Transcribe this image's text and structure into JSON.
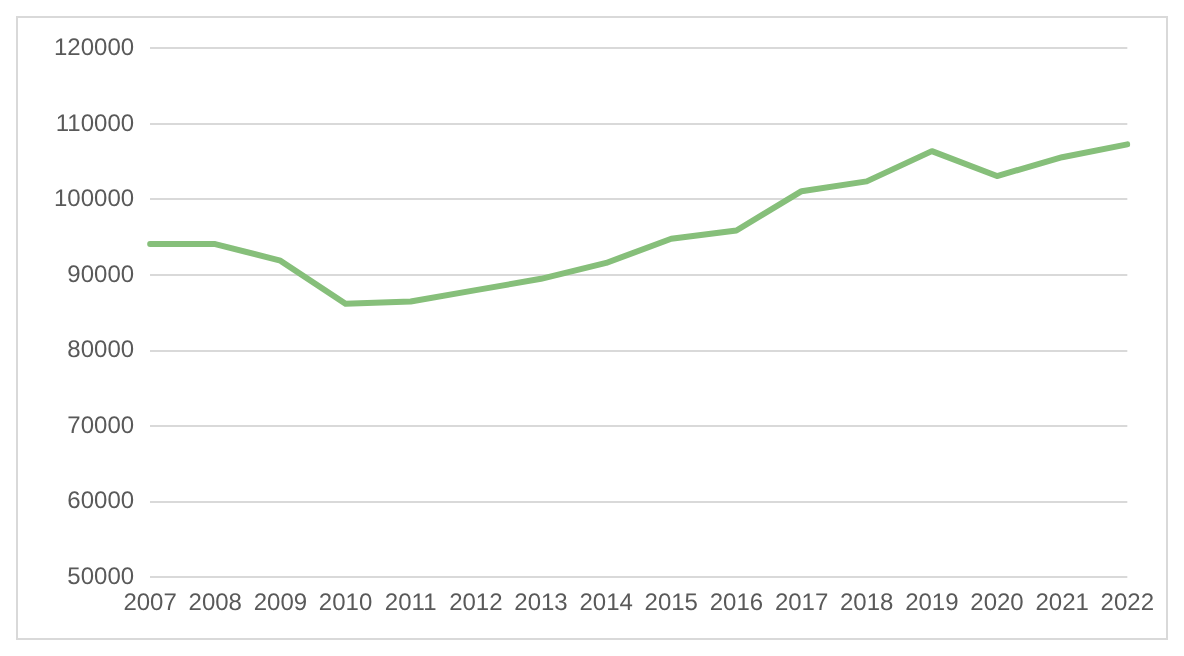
{
  "chart_data": {
    "type": "line",
    "categories": [
      "2007",
      "2008",
      "2009",
      "2010",
      "2011",
      "2012",
      "2013",
      "2014",
      "2015",
      "2016",
      "2017",
      "2018",
      "2019",
      "2020",
      "2021",
      "2022"
    ],
    "series": [
      {
        "color": "#86bf7a",
        "values": [
          94100,
          94100,
          91900,
          86200,
          86500,
          88000,
          89500,
          91600,
          94800,
          95900,
          101100,
          102400,
          106400,
          103100,
          105600,
          107300
        ]
      }
    ],
    "ylim": [
      50000,
      120000
    ],
    "yticks": [
      50000,
      60000,
      70000,
      80000,
      90000,
      100000,
      110000,
      120000
    ],
    "grid": "y",
    "legend": false,
    "marker": "none",
    "line_style": "solid"
  }
}
